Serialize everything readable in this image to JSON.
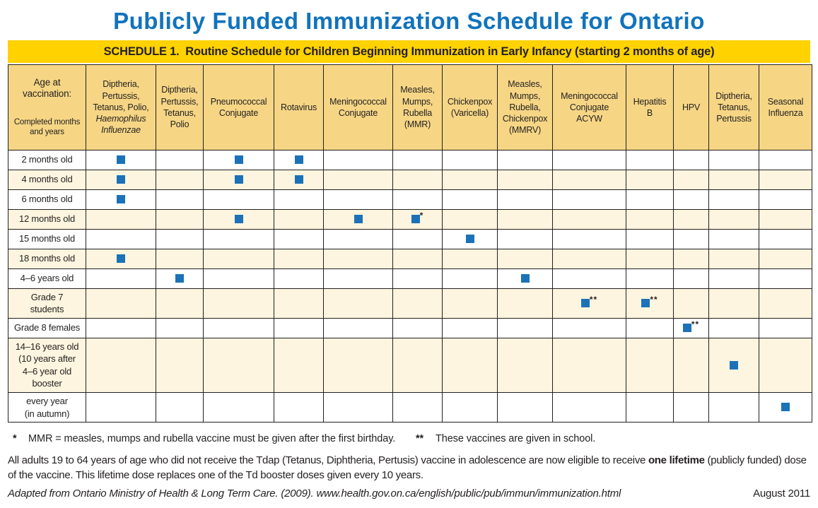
{
  "page": {
    "title": "Publicly Funded Immunization Schedule for Ontario",
    "banner": "SCHEDULE 1.  Routine Schedule for Children Beginning Immunization in Early Infancy (starting 2 months of age)"
  },
  "colors": {
    "title_blue": "#1173bc",
    "banner_yellow": "#ffd200",
    "header_tan": "#f6d685",
    "row_cream": "#fdf5df",
    "mark_blue": "#1b72b8"
  },
  "table": {
    "corner": {
      "label": "Age at vaccination:",
      "sublabel": "Completed months and years"
    },
    "columns": [
      {
        "label": "Diptheria,\nPertussis,\nTetanus, Polio,",
        "italic": "Haemophilus\nInfluenzae"
      },
      {
        "label": "Diptheria,\nPertussis,\nTetanus,\nPolio"
      },
      {
        "label": "Pneumococcal\nConjugate"
      },
      {
        "label": "Rotavirus"
      },
      {
        "label": "Meningococcal\nConjugate"
      },
      {
        "label": "Measles,\nMumps,\nRubella\n(MMR)"
      },
      {
        "label": "Chickenpox\n(Varicella)"
      },
      {
        "label": "Measles,\nMumps,\nRubella,\nChickenpox\n(MMRV)"
      },
      {
        "label": "Meningococcal\nConjugate\nACYW"
      },
      {
        "label": "Hepatitis\nB"
      },
      {
        "label": "HPV"
      },
      {
        "label": "Diptheria,\nTetanus,\nPertussis"
      },
      {
        "label": "Seasonal\nInfluenza"
      }
    ],
    "rows": [
      {
        "label": "2 months old",
        "marks": [
          {
            "col": 0
          },
          {
            "col": 2
          },
          {
            "col": 3
          }
        ]
      },
      {
        "label": "4 months old",
        "marks": [
          {
            "col": 0
          },
          {
            "col": 2
          },
          {
            "col": 3
          }
        ]
      },
      {
        "label": "6 months old",
        "marks": [
          {
            "col": 0
          }
        ]
      },
      {
        "label": "12 months old",
        "marks": [
          {
            "col": 2
          },
          {
            "col": 4
          },
          {
            "col": 5,
            "note": "*"
          }
        ]
      },
      {
        "label": "15 months old",
        "marks": [
          {
            "col": 6
          }
        ]
      },
      {
        "label": "18 months old",
        "marks": [
          {
            "col": 0
          }
        ]
      },
      {
        "label": "4–6 years old",
        "marks": [
          {
            "col": 1
          },
          {
            "col": 7
          }
        ]
      },
      {
        "label": "Grade 7\nstudents",
        "marks": [
          {
            "col": 8,
            "note": "**"
          },
          {
            "col": 9,
            "note": "**"
          }
        ]
      },
      {
        "label": "Grade 8 females",
        "marks": [
          {
            "col": 10,
            "note": "**"
          }
        ]
      },
      {
        "label": "14–16 years old\n(10 years after\n4–6 year old\nbooster",
        "marks": [
          {
            "col": 11
          }
        ]
      },
      {
        "label": "every year\n(in autumn)",
        "marks": [
          {
            "col": 12
          }
        ]
      }
    ]
  },
  "footnotes": {
    "star_symbol": "*",
    "star_text": "MMR = measles, mumps and rubella vaccine must be given after the first birthday.",
    "doublestar_symbol": "**",
    "doublestar_text": "These vaccines are given in school."
  },
  "paragraph": {
    "before_bold": "All adults 19 to 64 years of age who did not receive the Tdap (Tetanus, Diphtheria, Pertusis) vaccine in adolescence are now eligible to receive ",
    "bold": "one lifetime",
    "after_bold": " (publicly funded) dose of the vaccine. This lifetime dose replaces one of the Td booster doses given every 10 years."
  },
  "footer": {
    "source": "Adapted from Ontario Ministry of Health & Long Term Care. (2009). www.health.gov.on.ca/english/public/pub/immun/immunization.html",
    "date": "August 2011"
  }
}
